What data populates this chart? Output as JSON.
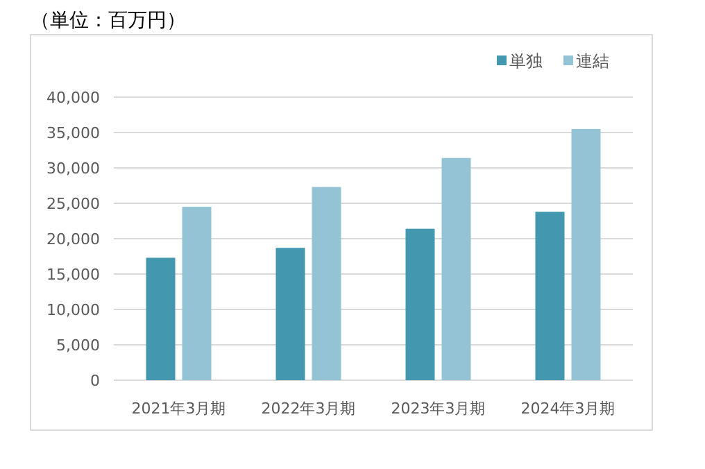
{
  "chart_data": {
    "type": "bar",
    "title": "（単位：百万円）",
    "categories": [
      "2021年3月期",
      "2022年3月期",
      "2023年3月期",
      "2024年3月期"
    ],
    "series": [
      {
        "name": "単独",
        "color": "#4398b0",
        "values": [
          17300,
          18700,
          21400,
          23800
        ]
      },
      {
        "name": "連結",
        "color": "#93c3d4",
        "values": [
          24500,
          27300,
          31400,
          35500
        ]
      }
    ],
    "ylim": [
      0,
      40000
    ],
    "yticks": [
      {
        "value": 0,
        "label": "0"
      },
      {
        "value": 5000,
        "label": "5,000"
      },
      {
        "value": 10000,
        "label": "10,000"
      },
      {
        "value": 15000,
        "label": "15,000"
      },
      {
        "value": 20000,
        "label": "20,000"
      },
      {
        "value": 25000,
        "label": "25,000"
      },
      {
        "value": 30000,
        "label": "30,000"
      },
      {
        "value": 35000,
        "label": "35,000"
      },
      {
        "value": 40000,
        "label": "40,000"
      }
    ],
    "grid": "y",
    "legend": "top right"
  }
}
